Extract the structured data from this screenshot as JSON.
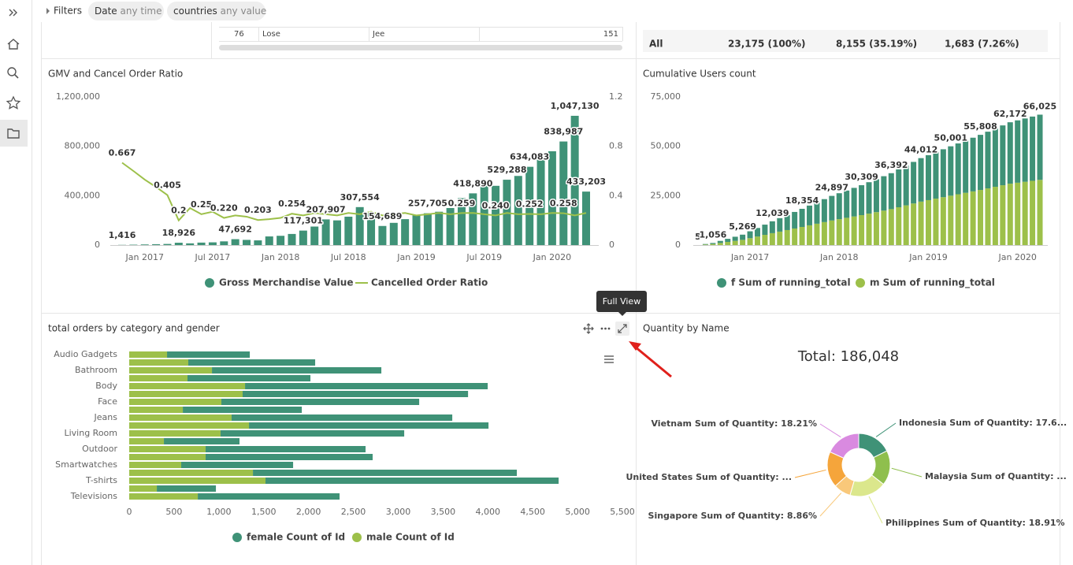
{
  "filters": {
    "label": "Filters",
    "chips": [
      {
        "name": "Date",
        "value": "any time"
      },
      {
        "name": "countries",
        "value": "any value"
      }
    ]
  },
  "table_left": {
    "row": [
      "76",
      "Lose",
      "Jee",
      "151"
    ]
  },
  "table_right": {
    "row": [
      "All",
      "23,175 (100%)",
      "8,155 (35.19%)",
      "1,683 (7.26%)"
    ]
  },
  "tooltip": "Full View",
  "chart_data": [
    {
      "type": "combo",
      "title": "GMV and Cancel Order Ratio",
      "x": [
        "2016-11",
        "2016-12",
        "2017-01",
        "2017-02",
        "2017-03",
        "2017-04",
        "2017-05",
        "2017-06",
        "2017-07",
        "2017-08",
        "2017-09",
        "2017-10",
        "2017-11",
        "2017-12",
        "2018-01",
        "2018-02",
        "2018-03",
        "2018-04",
        "2018-05",
        "2018-06",
        "2018-07",
        "2018-08",
        "2018-09",
        "2018-10",
        "2018-11",
        "2018-12",
        "2019-01",
        "2019-02",
        "2019-03",
        "2019-04",
        "2019-05",
        "2019-06",
        "2019-07",
        "2019-08",
        "2019-09",
        "2019-10",
        "2019-11",
        "2019-12",
        "2020-01",
        "2020-02",
        "2020-03",
        "2020-04"
      ],
      "xticks": [
        {
          "value": "2017-01",
          "label": "Jan 2017"
        },
        {
          "value": "2017-07",
          "label": "Jul 2017"
        },
        {
          "value": "2018-01",
          "label": "Jan 2018"
        },
        {
          "value": "2018-07",
          "label": "Jul 2018"
        },
        {
          "value": "2019-01",
          "label": "Jan 2019"
        },
        {
          "value": "2019-07",
          "label": "Jul 2019"
        },
        {
          "value": "2020-01",
          "label": "Jan 2020"
        }
      ],
      "ylim": [
        0,
        1200000
      ],
      "yticks": [
        0,
        {
          "value": 400000,
          "label": "400,000"
        },
        {
          "value": 800000,
          "label": "800,000"
        },
        {
          "value": 1200000,
          "label": "1,200,000"
        }
      ],
      "y2lim": [
        0,
        1.2
      ],
      "y2ticks": [
        0,
        0.4,
        0.8,
        1.2
      ],
      "series": [
        {
          "name": "Gross Merchandise Value",
          "type": "bar",
          "color": "#3f9277",
          "values": [
            1416,
            3000,
            5000,
            7000,
            9000,
            18926,
            14000,
            20000,
            22000,
            30000,
            47692,
            42000,
            38000,
            70000,
            75000,
            90000,
            117301,
            150000,
            207907,
            200000,
            230000,
            307554,
            260000,
            154689,
            180000,
            210000,
            240000,
            257705,
            270000,
            300000,
            380000,
            418890,
            500000,
            480000,
            529288,
            560000,
            634083,
            700000,
            760000,
            838987,
            1047130,
            433203
          ],
          "value_labels": [
            "1,416",
            null,
            null,
            null,
            null,
            "18,926",
            null,
            null,
            null,
            null,
            "47,692",
            null,
            null,
            null,
            null,
            null,
            "117,301",
            null,
            "207,907",
            null,
            null,
            "307,554",
            null,
            "154,689",
            null,
            null,
            null,
            "257,705",
            null,
            null,
            null,
            "418,890",
            null,
            null,
            "529,288",
            null,
            "634,083",
            null,
            null,
            "838,987",
            "1,047,130",
            "433,203"
          ]
        },
        {
          "name": "Cancelled Order Ratio",
          "type": "line",
          "axis": "y2",
          "color": "#9dc04a",
          "values": [
            0.667,
            0.6,
            0.53,
            0.47,
            0.405,
            0.2,
            0.3,
            0.25,
            0.27,
            0.22,
            0.24,
            0.23,
            0.203,
            0.21,
            0.22,
            0.254,
            0.24,
            0.26,
            0.25,
            0.24,
            0.26,
            0.25,
            0.27,
            0.24,
            0.25,
            0.26,
            0.24,
            0.25,
            0.26,
            0.25,
            0.259,
            0.26,
            0.25,
            0.24,
            0.26,
            0.25,
            0.252,
            0.25,
            0.26,
            0.258,
            0.24,
            0.26
          ],
          "value_labels": [
            "0.667",
            null,
            null,
            null,
            "0.405",
            "0.2",
            null,
            "0.25",
            null,
            "0.220",
            null,
            null,
            "0.203",
            null,
            null,
            "0.254",
            null,
            null,
            null,
            null,
            null,
            null,
            null,
            null,
            null,
            null,
            null,
            null,
            null,
            null,
            "0.259",
            null,
            null,
            "0.240",
            null,
            null,
            "0.252",
            null,
            null,
            "0.258",
            null,
            null
          ]
        }
      ]
    },
    {
      "type": "stacked_bar",
      "title": "Cumulative Users count",
      "x": [
        "2016-06",
        "2016-07",
        "2016-08",
        "2016-09",
        "2016-10",
        "2016-11",
        "2016-12",
        "2017-01",
        "2017-02",
        "2017-03",
        "2017-04",
        "2017-05",
        "2017-06",
        "2017-07",
        "2017-08",
        "2017-09",
        "2017-10",
        "2017-11",
        "2017-12",
        "2018-01",
        "2018-02",
        "2018-03",
        "2018-04",
        "2018-05",
        "2018-06",
        "2018-07",
        "2018-08",
        "2018-09",
        "2018-10",
        "2018-11",
        "2018-12",
        "2019-01",
        "2019-02",
        "2019-03",
        "2019-04",
        "2019-05",
        "2019-06",
        "2019-07",
        "2019-08",
        "2019-09",
        "2019-10",
        "2019-11",
        "2019-12",
        "2020-01",
        "2020-02",
        "2020-03",
        "2020-04"
      ],
      "xticks": [
        {
          "value": "2017-01",
          "label": "Jan 2017"
        },
        {
          "value": "2018-01",
          "label": "Jan 2018"
        },
        {
          "value": "2019-01",
          "label": "Jan 2019"
        },
        {
          "value": "2020-01",
          "label": "Jan 2020"
        }
      ],
      "ylim": [
        0,
        75000
      ],
      "yticks": [
        0,
        {
          "value": 25000,
          "label": "25,000"
        },
        {
          "value": 50000,
          "label": "50,000"
        },
        {
          "value": 75000,
          "label": "75,000"
        }
      ],
      "series": [
        {
          "name": "f Sum of running_total",
          "color": "#3f9277",
          "values": [
            3,
            265,
            528,
            1055,
            1581,
            2108,
            2635,
            3481,
            4327,
            5174,
            6020,
            6809,
            7599,
            8388,
            9177,
            9995,
            10813,
            11631,
            12449,
            13125,
            13802,
            14478,
            15155,
            15915,
            16676,
            17436,
            18196,
            19149,
            20101,
            21054,
            22006,
            22755,
            23504,
            24252,
            25001,
            25727,
            26453,
            27178,
            27904,
            28700,
            29495,
            30291,
            31086,
            31568,
            32049,
            32531,
            33013
          ]
        },
        {
          "name": "m Sum of running_total",
          "color": "#9dc04a",
          "values": [
            2,
            265,
            528,
            1054,
            1581,
            2108,
            2634,
            3481,
            4327,
            5173,
            6019,
            6809,
            7598,
            8387,
            9177,
            9995,
            10813,
            11630,
            12448,
            13125,
            13801,
            14478,
            15154,
            15915,
            16675,
            17435,
            18196,
            19148,
            20101,
            21053,
            22006,
            22754,
            23503,
            24252,
            25000,
            25726,
            26452,
            27178,
            27904,
            28699,
            29495,
            30290,
            31086,
            31567,
            32049,
            32531,
            33012
          ]
        }
      ],
      "totals": [
        5,
        null,
        1056,
        null,
        null,
        null,
        5269,
        null,
        null,
        null,
        12039,
        null,
        null,
        null,
        18354,
        null,
        null,
        null,
        24897,
        null,
        null,
        null,
        30309,
        null,
        null,
        null,
        36392,
        null,
        null,
        null,
        44012,
        null,
        null,
        null,
        50001,
        null,
        null,
        null,
        55808,
        null,
        null,
        null,
        62172,
        null,
        null,
        null,
        66025
      ],
      "total_labels": [
        "5",
        null,
        "1,056",
        null,
        null,
        null,
        "5,269",
        null,
        null,
        null,
        "12,039",
        null,
        null,
        null,
        "18,354",
        null,
        null,
        null,
        "24,897",
        null,
        null,
        null,
        "30,309",
        null,
        null,
        null,
        "36,392",
        null,
        null,
        null,
        "44,012",
        null,
        null,
        null,
        "50,001",
        null,
        null,
        null,
        "55,808",
        null,
        null,
        null,
        "62,172",
        null,
        null,
        null,
        "66,025"
      ]
    },
    {
      "type": "hbar_stacked",
      "title": "total orders by category and gender",
      "categories": [
        "Audio Gadgets",
        null,
        "Bathroom",
        null,
        "Body",
        null,
        "Face",
        null,
        "Jeans",
        null,
        "Living Room",
        null,
        "Outdoor",
        null,
        "Smartwatches",
        null,
        "T-shirts",
        null,
        "Televisions"
      ],
      "xlim": [
        0,
        5500
      ],
      "xticks": [
        0,
        500,
        {
          "value": 1000,
          "label": "1,000"
        },
        {
          "value": 1500,
          "label": "1,500"
        },
        {
          "value": 2000,
          "label": "2,000"
        },
        {
          "value": 2500,
          "label": "2,500"
        },
        {
          "value": 3000,
          "label": "3,000"
        },
        {
          "value": 3500,
          "label": "3,500"
        },
        {
          "value": 4000,
          "label": "4,000"
        },
        {
          "value": 4500,
          "label": "4,500"
        },
        {
          "value": 5000,
          "label": "5,000"
        },
        {
          "value": 5500,
          "label": "5,500"
        }
      ],
      "series": [
        {
          "name": "female Count of Id",
          "color": "#3f9277",
          "values": [
            923,
            1415,
            1889,
            1371,
            2706,
            2514,
            2206,
            1327,
            2461,
            2671,
            2048,
            843,
            1784,
            1863,
            1248,
            2943,
            3269,
            659,
            1581
          ]
        },
        {
          "name": "male Count of Id",
          "color": "#9dc04a",
          "values": [
            422,
            659,
            923,
            650,
            1292,
            1265,
            1028,
            598,
            1142,
            1336,
            1019,
            387,
            852,
            852,
            580,
            1380,
            1520,
            308,
            765
          ]
        }
      ]
    },
    {
      "type": "donut",
      "title": "Quantity by Name",
      "total_text": "Total: 186,048",
      "labels": [
        "Indonesia Sum of Quantity: 17.6...",
        "Malaysia Sum of Quantity: ...",
        "Philippines Sum of Quantity: 18.91%",
        "Singapore Sum of Quantity: 8.86%",
        "United States Sum of Quantity: ...",
        "Vietnam Sum of Quantity: 18.21%"
      ],
      "values": [
        17.65,
        17.9,
        18.91,
        8.86,
        18.47,
        18.21
      ],
      "colors": [
        "#3f9277",
        "#8fbf4d",
        "#dbe78c",
        "#f9c87a",
        "#f5a53b",
        "#d98ae0"
      ]
    }
  ]
}
